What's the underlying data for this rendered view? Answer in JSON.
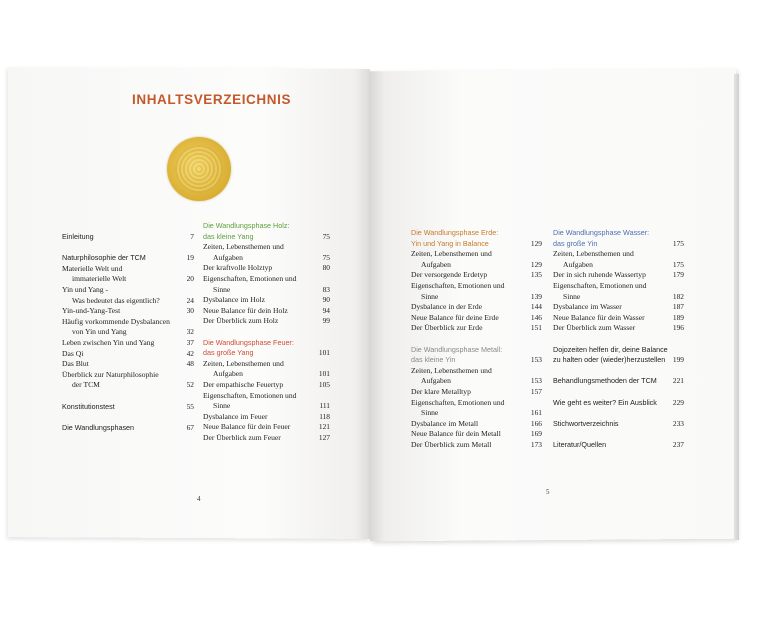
{
  "heading": {
    "title": "INHALTSVERZEICHNIS",
    "title_color": "#c5582c",
    "emblem": "golden-circle"
  },
  "colors": {
    "holz": "#5d9f3c",
    "feuer": "#cf4b35",
    "erde": "#c77a2a",
    "metall": "#8a8a8a",
    "wasser": "#4d6fb3",
    "text": "#222222"
  },
  "columns": [
    [
      {
        "lines": [
          "Einleitung"
        ],
        "page": "7",
        "style": "sans"
      },
      {
        "lines": [
          "Naturphilosophie der TCM"
        ],
        "page": "19",
        "style": "sans",
        "gap": true
      },
      {
        "lines": [
          "Materielle Welt und",
          "immaterielle Welt"
        ],
        "page": "20"
      },
      {
        "lines": [
          "Yin und Yang -",
          "Was bedeutet das eigentlich?"
        ],
        "page": "24"
      },
      {
        "lines": [
          "Yin-und-Yang-Test"
        ],
        "page": "30"
      },
      {
        "lines": [
          "Häufig vorkommende Dysbalancen",
          "von Yin und Yang"
        ],
        "page": "32"
      },
      {
        "lines": [
          "Leben zwischen Yin und Yang"
        ],
        "page": "37"
      },
      {
        "lines": [
          "Das Qi"
        ],
        "page": "42"
      },
      {
        "lines": [
          "Das Blut"
        ],
        "page": "48"
      },
      {
        "lines": [
          "Überblick zur Naturphilosophie",
          "der TCM"
        ],
        "page": "52"
      },
      {
        "lines": [
          "Konstitutionstest"
        ],
        "page": "55",
        "style": "sans",
        "gap": true
      },
      {
        "lines": [
          "Die Wandlungsphasen"
        ],
        "page": "67",
        "style": "sans",
        "gap": true
      }
    ],
    [
      {
        "lines": [
          "Die Wandlungsphase Holz:",
          "das kleine Yang"
        ],
        "page": "75",
        "style": "sans",
        "color": "holz"
      },
      {
        "lines": [
          "Zeiten, Lebensthemen und",
          "Aufgaben"
        ],
        "page": "75"
      },
      {
        "lines": [
          "Der kraftvolle Holztyp"
        ],
        "page": "80"
      },
      {
        "lines": [
          "Eigenschaften, Emotionen und",
          "Sinne"
        ],
        "page": "83"
      },
      {
        "lines": [
          "Dysbalance im Holz"
        ],
        "page": "90"
      },
      {
        "lines": [
          "Neue Balance für dein Holz"
        ],
        "page": "94"
      },
      {
        "lines": [
          "Der Überblick zum Holz"
        ],
        "page": "99"
      },
      {
        "lines": [
          "Die Wandlungsphase Feuer:",
          "das große Yang"
        ],
        "page": "101",
        "style": "sans",
        "color": "feuer",
        "gap": true
      },
      {
        "lines": [
          "Zeiten, Lebensthemen und",
          "Aufgaben"
        ],
        "page": "101"
      },
      {
        "lines": [
          "Der empathische Feuertyp"
        ],
        "page": "105"
      },
      {
        "lines": [
          "Eigenschaften, Emotionen und",
          "Sinne"
        ],
        "page": "111"
      },
      {
        "lines": [
          "Dysbalance im Feuer"
        ],
        "page": "118"
      },
      {
        "lines": [
          "Neue Balance für dein Feuer"
        ],
        "page": "121"
      },
      {
        "lines": [
          "Der Überblick zum Feuer"
        ],
        "page": "127"
      }
    ],
    [
      {
        "lines": [
          "Die Wandlungsphase Erde:",
          "Yin und Yang in Balance"
        ],
        "page": "129",
        "style": "sans",
        "color": "erde"
      },
      {
        "lines": [
          "Zeiten, Lebensthemen und",
          "Aufgaben"
        ],
        "page": "129"
      },
      {
        "lines": [
          "Der versorgende Erdetyp"
        ],
        "page": "135"
      },
      {
        "lines": [
          "Eigenschaften, Emotionen und",
          "Sinne"
        ],
        "page": "139"
      },
      {
        "lines": [
          "Dysbalance in der Erde"
        ],
        "page": "144"
      },
      {
        "lines": [
          "Neue Balance für deine Erde"
        ],
        "page": "146"
      },
      {
        "lines": [
          "Der Überblick zur Erde"
        ],
        "page": "151"
      },
      {
        "lines": [
          "Die Wandlungsphase Metall:",
          "das kleine Yin"
        ],
        "page": "153",
        "style": "sans",
        "color": "metall",
        "gap": true
      },
      {
        "lines": [
          "Zeiten, Lebensthemen und",
          "Aufgaben"
        ],
        "page": "153"
      },
      {
        "lines": [
          "Der klare Metalltyp"
        ],
        "page": "157"
      },
      {
        "lines": [
          "Eigenschaften, Emotionen und",
          "Sinne"
        ],
        "page": "161"
      },
      {
        "lines": [
          "Dysbalance im Metall"
        ],
        "page": "166"
      },
      {
        "lines": [
          "Neue Balance für dein Metall"
        ],
        "page": "169"
      },
      {
        "lines": [
          "Der Überblick zum Metall"
        ],
        "page": "173"
      }
    ],
    [
      {
        "lines": [
          "Die Wandlungsphase Wasser:",
          "das große Yin"
        ],
        "page": "175",
        "style": "sans",
        "color": "wasser"
      },
      {
        "lines": [
          "Zeiten, Lebensthemen und",
          "Aufgaben"
        ],
        "page": "175"
      },
      {
        "lines": [
          "Der in sich ruhende Wassertyp"
        ],
        "page": "179"
      },
      {
        "lines": [
          "Eigenschaften, Emotionen und",
          "Sinne"
        ],
        "page": "182"
      },
      {
        "lines": [
          "Dysbalance im Wasser"
        ],
        "page": "187"
      },
      {
        "lines": [
          "Neue Balance für dein Wasser"
        ],
        "page": "189"
      },
      {
        "lines": [
          "Der Überblick zum Wasser"
        ],
        "page": "196"
      },
      {
        "lines": [
          "Dojozeiten helfen dir, deine Balance",
          "zu halten oder (wieder)herzustellen"
        ],
        "page": "199",
        "style": "sans",
        "gap": true
      },
      {
        "lines": [
          "Behandlungsmethoden der TCM"
        ],
        "page": "221",
        "style": "sans",
        "gap": true
      },
      {
        "lines": [
          "Wie geht es weiter? Ein Ausblick"
        ],
        "page": "229",
        "style": "sans",
        "gap": true
      },
      {
        "lines": [
          "Stichwortverzeichnis"
        ],
        "page": "233",
        "style": "sans",
        "gap": true
      },
      {
        "lines": [
          "Literatur/Quellen"
        ],
        "page": "237",
        "style": "sans",
        "gap": true
      }
    ]
  ],
  "folios": {
    "left": "4",
    "right": "5"
  }
}
